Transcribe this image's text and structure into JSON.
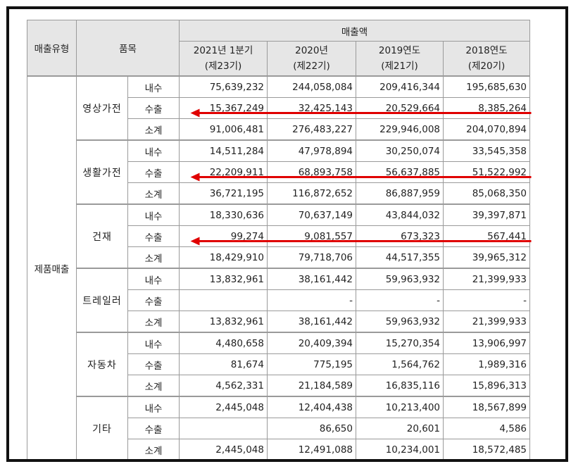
{
  "header": {
    "type_label": "매출유형",
    "item_label": "품목",
    "sales_label": "매출액",
    "periods": [
      {
        "year": "2021년 1분기",
        "term": "(제23기)"
      },
      {
        "year": "2020년",
        "term": "(제22기)"
      },
      {
        "year": "2019연도",
        "term": "(제21기)"
      },
      {
        "year": "2018연도",
        "term": "(제20기)"
      }
    ]
  },
  "sales_type": "제품매출",
  "categories": [
    {
      "name": "영상가전",
      "rows": [
        {
          "sub": "내수",
          "values": [
            "75,639,232",
            "244,058,084",
            "209,416,344",
            "195,685,630"
          ]
        },
        {
          "sub": "수출",
          "values": [
            "15,367,249",
            "32,425,143",
            "20,529,664",
            "8,385,264"
          ]
        },
        {
          "sub": "소계",
          "values": [
            "91,006,481",
            "276,483,227",
            "229,946,008",
            "204,070,894"
          ]
        }
      ]
    },
    {
      "name": "생활가전",
      "rows": [
        {
          "sub": "내수",
          "values": [
            "14,511,284",
            "47,978,894",
            "30,250,074",
            "33,545,358"
          ]
        },
        {
          "sub": "수출",
          "values": [
            "22,209,911",
            "68,893,758",
            "56,637,885",
            "51,522,992"
          ]
        },
        {
          "sub": "소계",
          "values": [
            "36,721,195",
            "116,872,652",
            "86,887,959",
            "85,068,350"
          ]
        }
      ]
    },
    {
      "name": "건재",
      "rows": [
        {
          "sub": "내수",
          "values": [
            "18,330,636",
            "70,637,149",
            "43,844,032",
            "39,397,871"
          ]
        },
        {
          "sub": "수출",
          "values": [
            "99,274",
            "9,081,557",
            "673,323",
            "567,441"
          ]
        },
        {
          "sub": "소계",
          "values": [
            "18,429,910",
            "79,718,706",
            "44,517,355",
            "39,965,312"
          ]
        }
      ]
    },
    {
      "name": "트레일러",
      "rows": [
        {
          "sub": "내수",
          "values": [
            "13,832,961",
            "38,161,442",
            "59,963,932",
            "21,399,933"
          ]
        },
        {
          "sub": "수출",
          "values": [
            "",
            "-",
            "-",
            "-"
          ]
        },
        {
          "sub": "소계",
          "values": [
            "13,832,961",
            "38,161,442",
            "59,963,932",
            "21,399,933"
          ]
        }
      ]
    },
    {
      "name": "자동차",
      "rows": [
        {
          "sub": "내수",
          "values": [
            "4,480,658",
            "20,409,394",
            "15,270,354",
            "13,906,997"
          ]
        },
        {
          "sub": "수출",
          "values": [
            "81,674",
            "775,195",
            "1,564,762",
            "1,989,316"
          ]
        },
        {
          "sub": "소계",
          "values": [
            "4,562,331",
            "21,184,589",
            "16,835,116",
            "15,896,313"
          ]
        }
      ]
    },
    {
      "name": "기타",
      "rows": [
        {
          "sub": "내수",
          "values": [
            "2,445,048",
            "12,404,438",
            "10,213,400",
            "18,567,899"
          ]
        },
        {
          "sub": "수출",
          "values": [
            "",
            "86,650",
            "20,601",
            "4,586"
          ]
        },
        {
          "sub": "소계",
          "values": [
            "2,445,048",
            "12,491,088",
            "10,234,001",
            "18,572,485"
          ]
        }
      ]
    }
  ],
  "colors": {
    "arrow": "#e00000",
    "header_bg": "#e6e6e6",
    "border": "#9a9a9a",
    "frame": "#111111"
  },
  "annotations": {
    "highlighted_categories": [
      0,
      1,
      2
    ],
    "highlighted_sub": "수출",
    "icon": "left-arrow-icon"
  }
}
